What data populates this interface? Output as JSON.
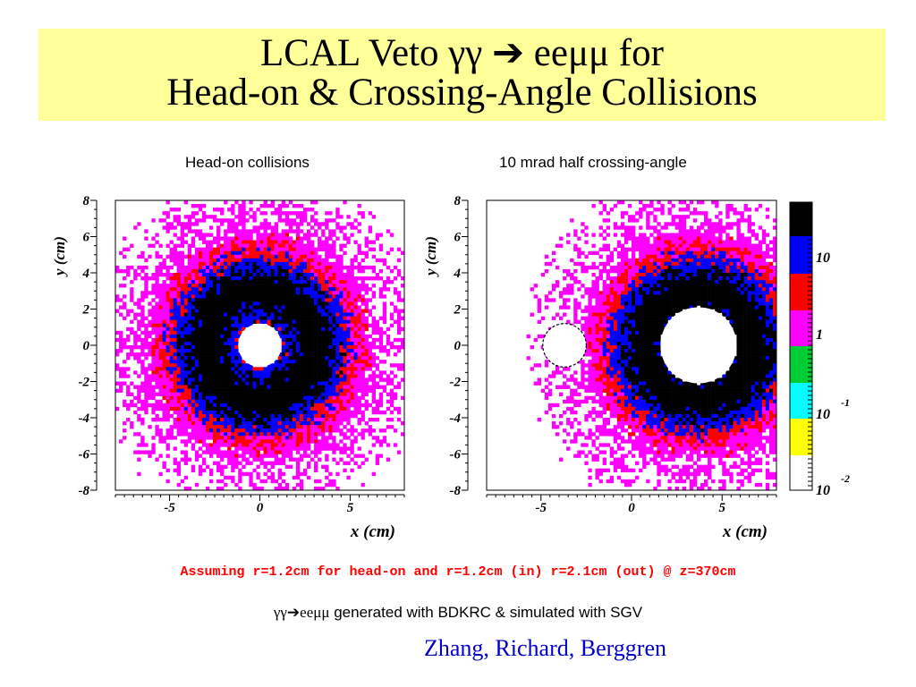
{
  "slide": {
    "title_line1": "LCAL Veto γγ ➔ eeμμ for",
    "title_line2": "Head-on & Crossing-Angle Collisions",
    "assumption_text": "Assuming r=1.2cm for head-on and r=1.2cm (in) r=2.1cm (out) @ z=370cm",
    "generation_symbols": "γγ➔eeμμ",
    "generation_text": " generated with BDKRC & simulated with SGV",
    "authors": "Zhang, Richard, Berggren"
  },
  "chart_data": [
    {
      "type": "heatmap",
      "title": "Head-on collisions",
      "xlabel": "x (cm)",
      "ylabel": "y (cm)",
      "xlim": [
        -8,
        8
      ],
      "ylim": [
        -8,
        8
      ],
      "x_ticks": [
        "-5",
        "0",
        "5"
      ],
      "y_ticks": [
        "8",
        "6",
        "4",
        "2",
        "0",
        "-2",
        "-4",
        "-6",
        "-8"
      ],
      "holes": [
        {
          "center_x": 0,
          "center_y": 0,
          "radius": 1.2,
          "style": "solid"
        }
      ],
      "ring_center_x": 0,
      "ring_center_y": 0,
      "color_scale": "log"
    },
    {
      "type": "heatmap",
      "title": "10 mrad half crossing-angle",
      "xlabel": "x (cm)",
      "ylabel": "y (cm)",
      "xlim": [
        -8,
        8
      ],
      "ylim": [
        -8,
        8
      ],
      "x_ticks": [
        "-5",
        "0",
        "5"
      ],
      "y_ticks": [
        "8",
        "6",
        "4",
        "2",
        "0",
        "-2",
        "-4",
        "-6",
        "-8"
      ],
      "holes": [
        {
          "center_x": -3.7,
          "center_y": 0,
          "radius": 1.2,
          "style": "dashed"
        },
        {
          "center_x": 3.7,
          "center_y": 0,
          "radius": 2.1,
          "style": "solid"
        }
      ],
      "ring_center_x": 3.7,
      "ring_center_y": 0,
      "color_scale": "log"
    }
  ],
  "colorbar": {
    "labels": [
      {
        "base": "10",
        "exp": ""
      },
      {
        "base": "1",
        "exp": ""
      },
      {
        "base": "10",
        "exp": "-1"
      },
      {
        "base": "10",
        "exp": "-2"
      }
    ],
    "colors": [
      "#000000",
      "#0000ff",
      "#ff0000",
      "#ff00ff",
      "#00cc33",
      "#00ffff",
      "#ffff00",
      "#ffffff"
    ]
  }
}
